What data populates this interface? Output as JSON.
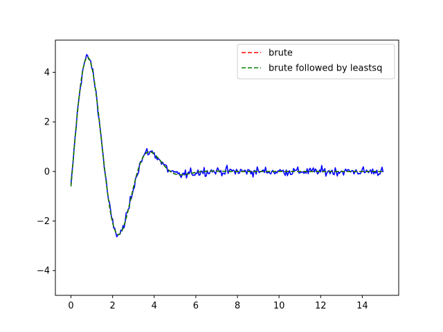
{
  "chart_data": {
    "type": "line",
    "title": "",
    "xlabel": "",
    "ylabel": "",
    "xlim": [
      -0.75,
      15.75
    ],
    "ylim": [
      -5.0,
      5.3
    ],
    "x_ticks": [
      0,
      2,
      4,
      6,
      8,
      10,
      12,
      14
    ],
    "y_ticks": [
      -4,
      -2,
      0,
      2,
      4
    ],
    "grid": false,
    "legend_position": "upper right",
    "model": {
      "x_range": [
        0,
        15
      ],
      "points": 301,
      "amplitude": 5,
      "decay": 0.35,
      "frequency": 2,
      "phase": -0.12,
      "offset": 0
    },
    "series": [
      {
        "label": "",
        "color": "#0000ff",
        "style": "solid",
        "kind": "data",
        "noise": 0.15
      },
      {
        "name": "brute",
        "color": "#ff0000",
        "style": "dashed",
        "kind": "model"
      },
      {
        "name": "brute followed by leastsq",
        "color": "#008000",
        "style": "dashed",
        "kind": "model"
      }
    ]
  }
}
